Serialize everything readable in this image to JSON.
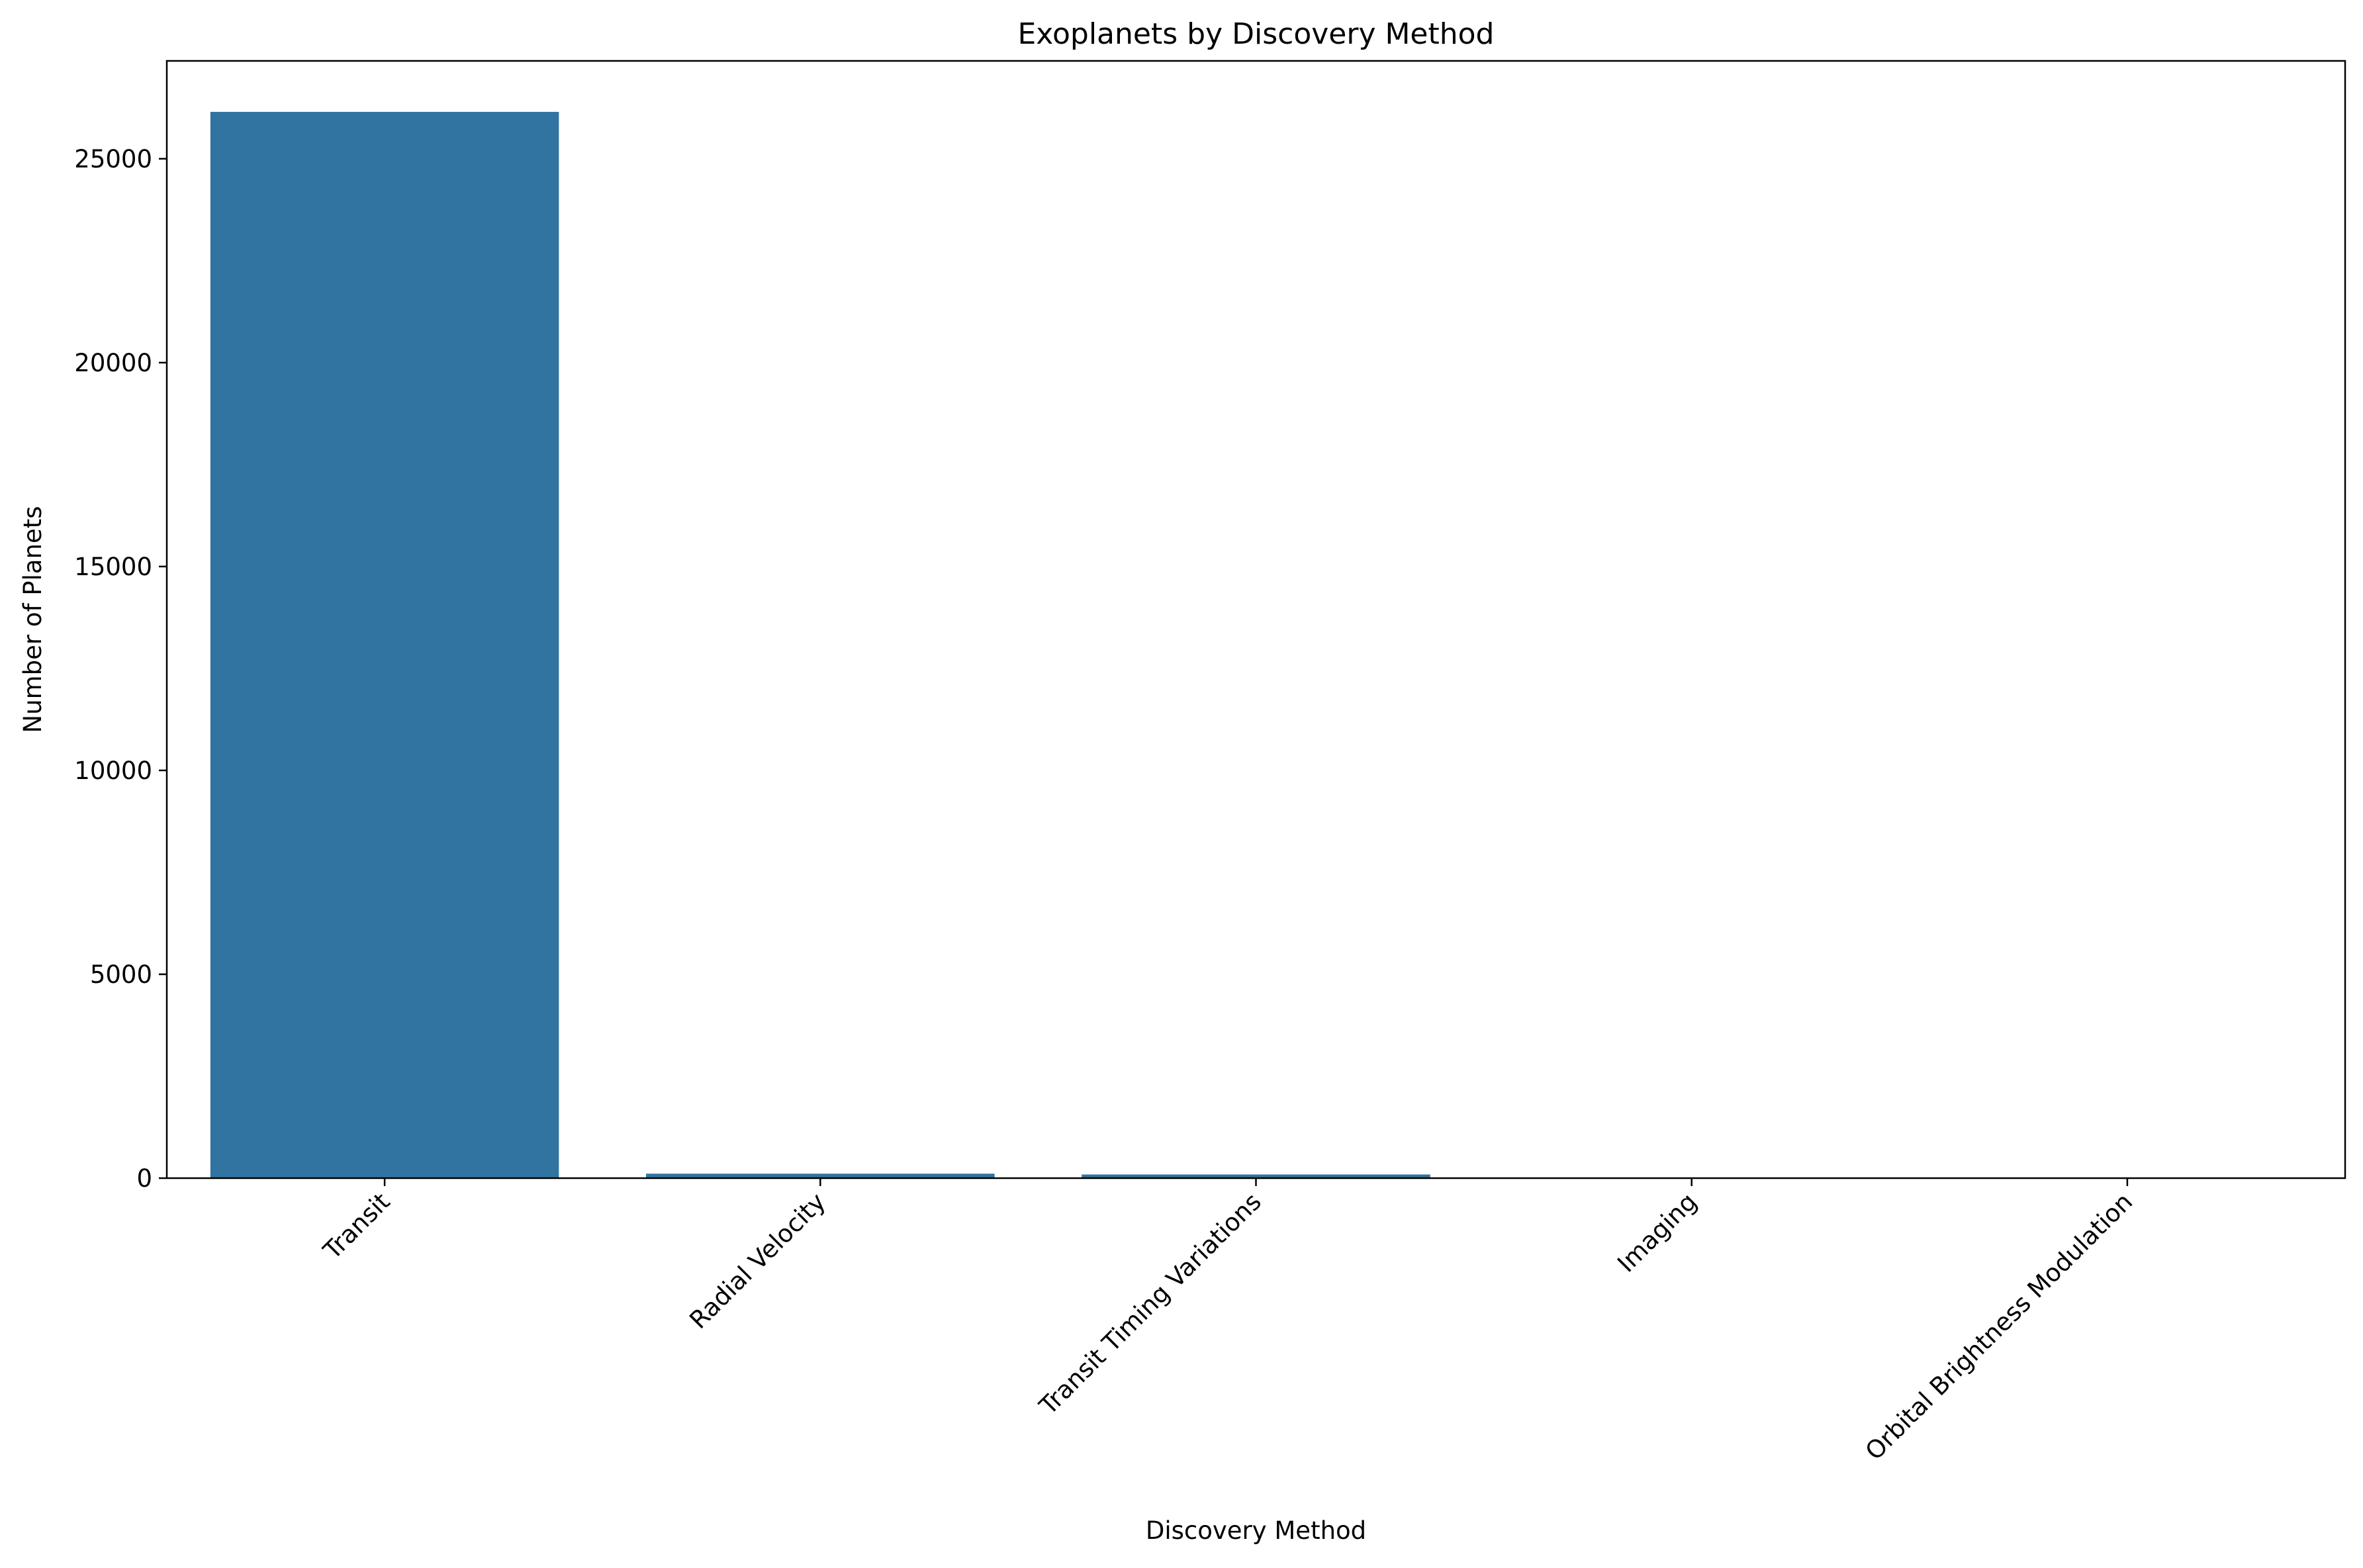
{
  "chart_data": {
    "type": "bar",
    "title": "Exoplanets by Discovery Method",
    "xlabel": "Discovery Method",
    "ylabel": "Number of Planets",
    "categories": [
      "Transit",
      "Radial Velocity",
      "Transit Timing Variations",
      "Imaging",
      "Orbital Brightness Modulation"
    ],
    "values": [
      26150,
      110,
      90,
      15,
      3
    ],
    "ylim": [
      0,
      27400
    ],
    "yticks": [
      0,
      5000,
      10000,
      15000,
      20000,
      25000
    ],
    "ytick_labels": [
      "0",
      "5000",
      "10000",
      "15000",
      "20000",
      "25000"
    ],
    "grid": false,
    "legend": "none",
    "bar_color": "#3274a1",
    "xtick_rotation_deg": 45
  }
}
